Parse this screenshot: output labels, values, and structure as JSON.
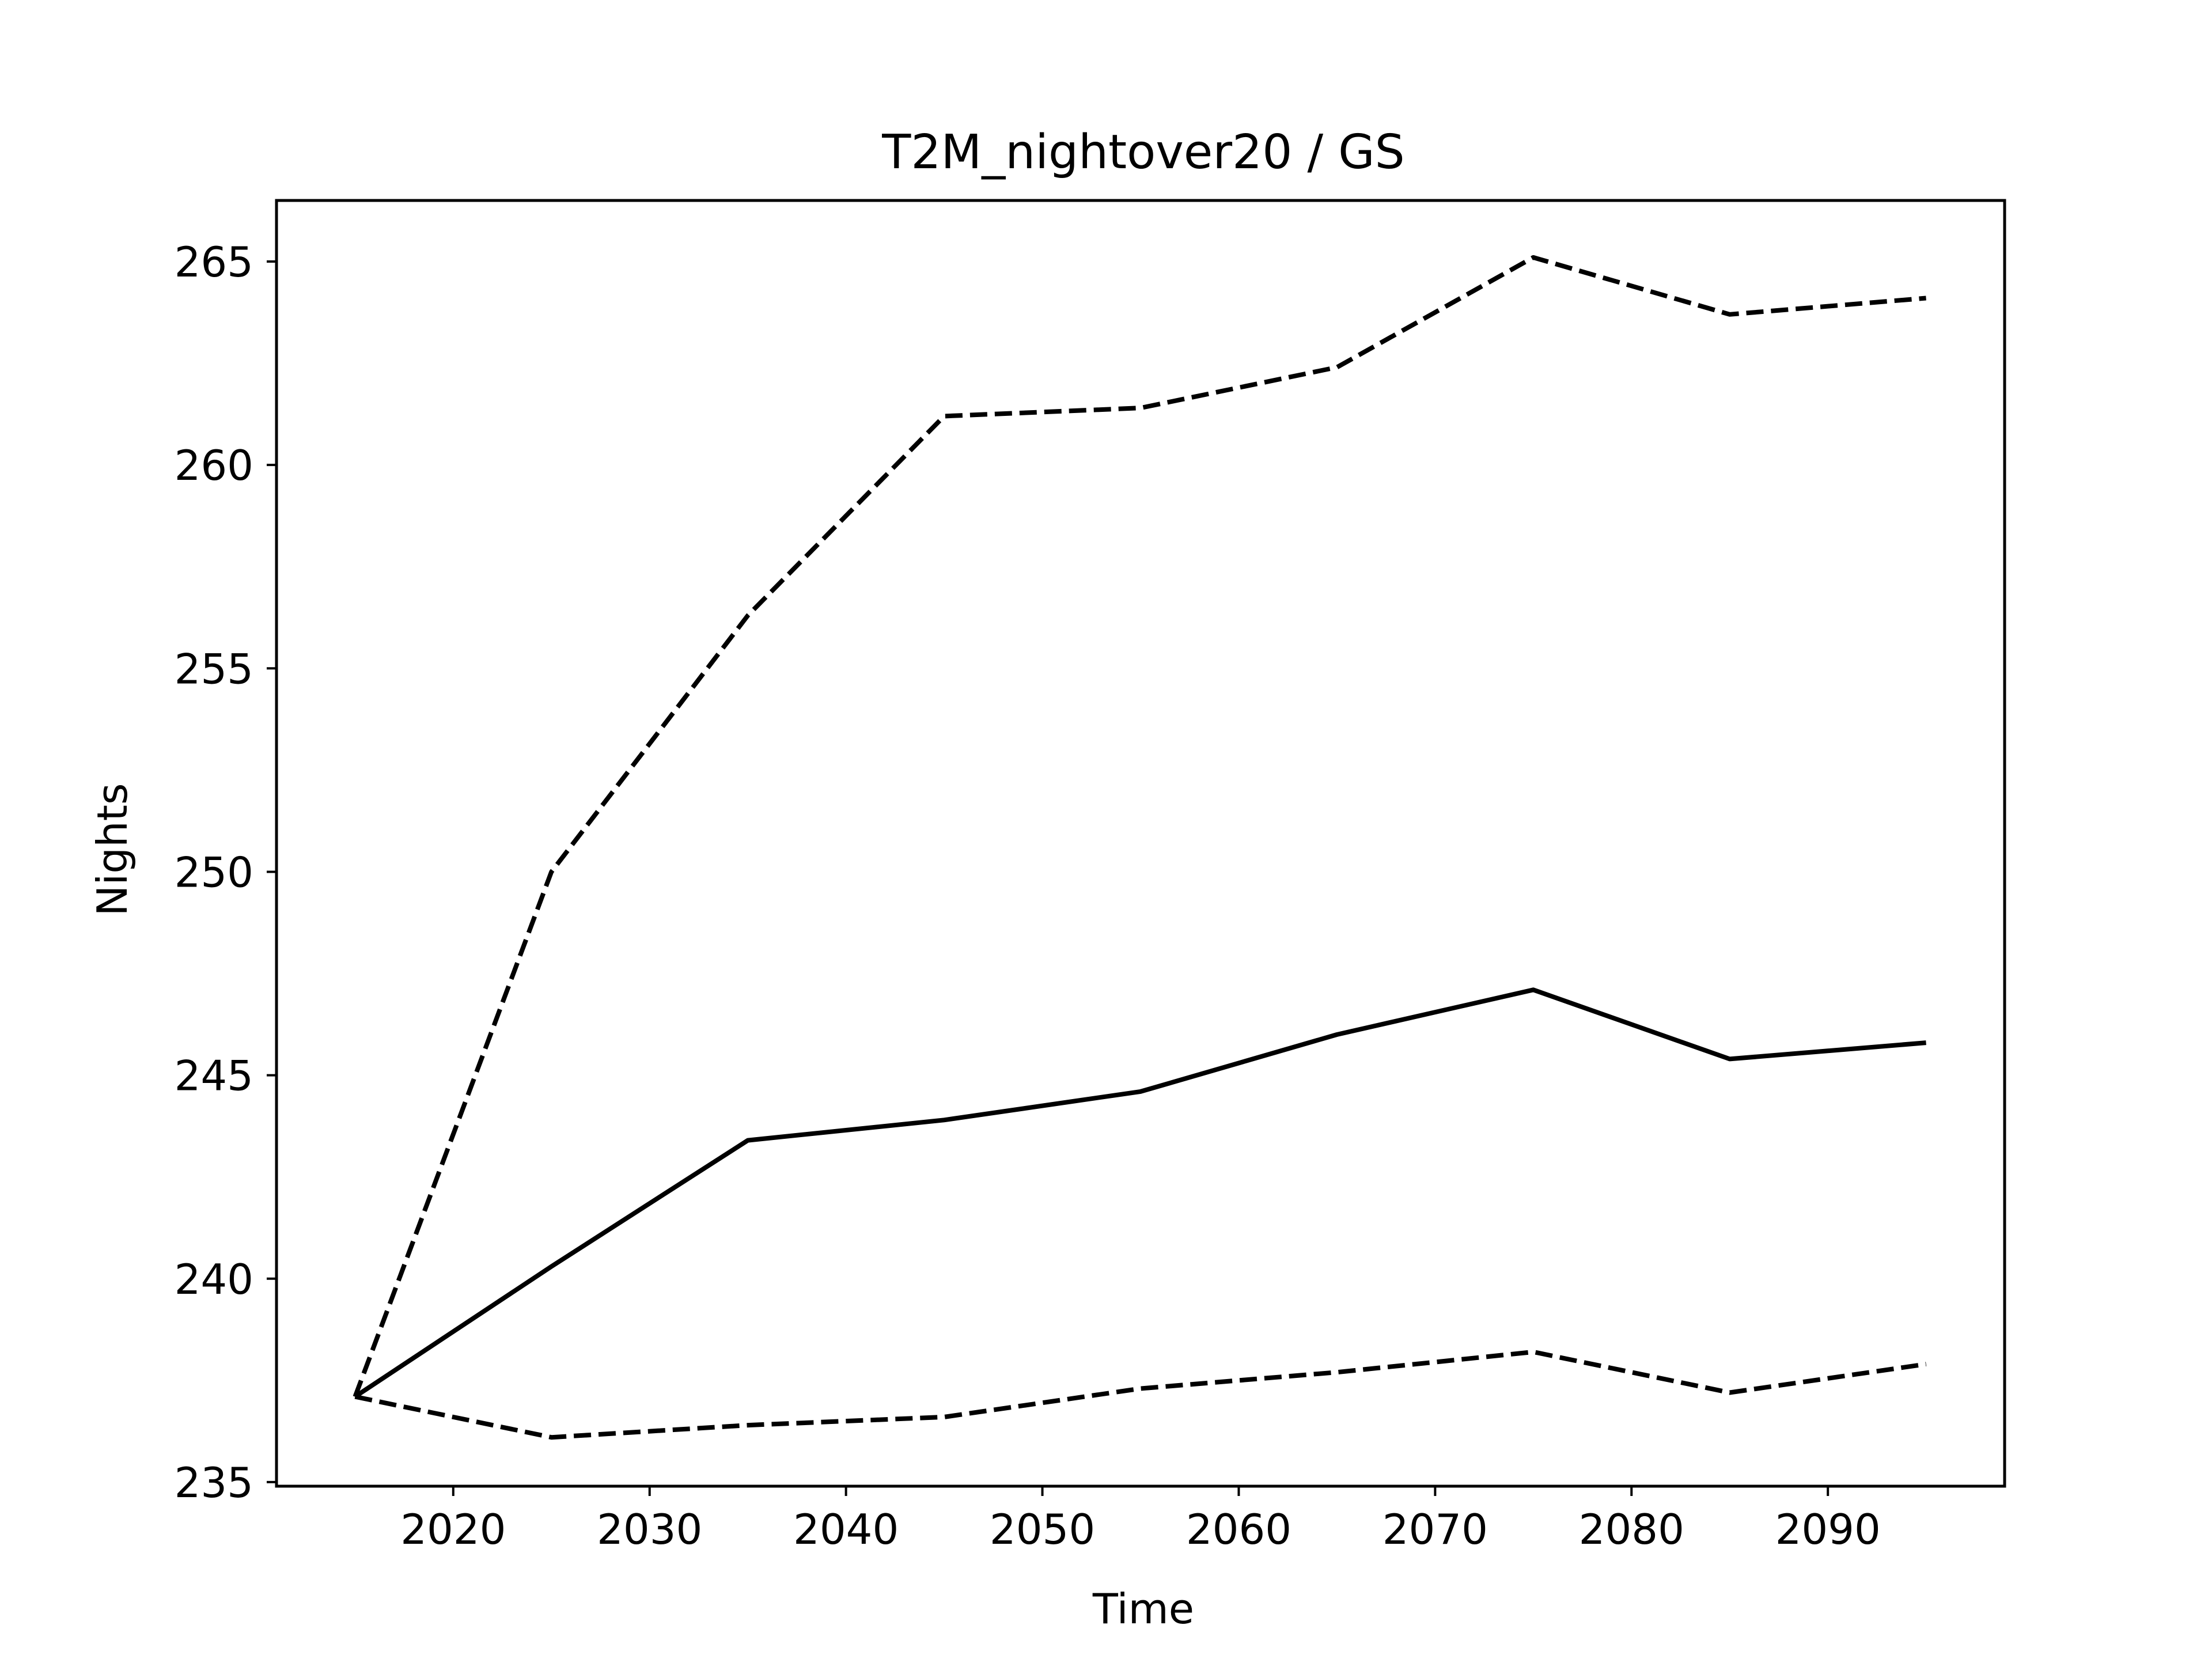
{
  "chart_data": {
    "type": "line",
    "title": "T2M_nightover20 / GS",
    "xlabel": "Time",
    "ylabel": "Nights",
    "xlim": [
      2011,
      2099
    ],
    "ylim": [
      234.9,
      266.5
    ],
    "xticks": [
      2020,
      2030,
      2040,
      2050,
      2060,
      2070,
      2080,
      2090
    ],
    "yticks": [
      235,
      240,
      245,
      250,
      255,
      260,
      265
    ],
    "grid": false,
    "legend": false,
    "x": [
      2015,
      2025,
      2035,
      2045,
      2055,
      2065,
      2075,
      2085,
      2095
    ],
    "series": [
      {
        "style": "solid",
        "color": "#000000",
        "values": [
          237.1,
          240.3,
          243.4,
          243.9,
          244.6,
          246.0,
          247.1,
          245.4,
          245.8
        ]
      },
      {
        "style": "dashed",
        "color": "#000000",
        "values": [
          237.1,
          250.0,
          256.3,
          261.2,
          261.4,
          262.4,
          265.1,
          263.7,
          264.1
        ]
      },
      {
        "style": "dashed",
        "color": "#000000",
        "values": [
          237.1,
          236.1,
          236.4,
          236.6,
          237.3,
          237.7,
          238.2,
          237.2,
          237.9
        ]
      }
    ]
  }
}
